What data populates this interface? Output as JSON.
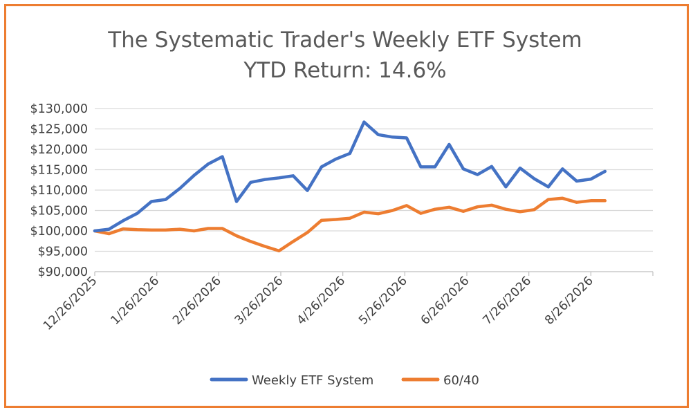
{
  "chart_data": {
    "type": "line",
    "title": "The Systematic Trader's Weekly ETF System",
    "subtitle": "YTD Return: 14.6%",
    "y_ticks": [
      "$90,000",
      "$95,000",
      "$100,000",
      "$105,000",
      "$110,000",
      "$115,000",
      "$120,000",
      "$125,000",
      "$130,000"
    ],
    "ylim": [
      90000,
      130000
    ],
    "x_ticks": [
      "12/26/2025",
      "1/26/2026",
      "2/26/2026",
      "3/26/2026",
      "4/26/2026",
      "5/26/2026",
      "6/26/2026",
      "7/26/2026",
      "8/26/2026"
    ],
    "grid": true,
    "legend_position": "bottom",
    "series": [
      {
        "name": "Weekly ETF System",
        "color": "#4472C4",
        "values": [
          100000,
          100400,
          102500,
          104300,
          107200,
          107700,
          110400,
          113600,
          116400,
          118200,
          107200,
          111900,
          112600,
          113000,
          113500,
          109900,
          115700,
          117600,
          119000,
          126700,
          123600,
          123000,
          122800,
          115700,
          115700,
          121200,
          115200,
          113800,
          115800,
          110800,
          115400,
          112800,
          110800,
          115200,
          112200,
          112700,
          114600
        ]
      },
      {
        "name": "60/40",
        "color": "#ED7D31",
        "values": [
          100000,
          99300,
          100500,
          100300,
          100200,
          100200,
          100400,
          100000,
          100600,
          100600,
          98800,
          97400,
          96200,
          95100,
          97400,
          99600,
          102600,
          102800,
          103100,
          104600,
          104200,
          105000,
          106200,
          104300,
          105300,
          105800,
          104800,
          105900,
          106300,
          105300,
          104700,
          105200,
          107700,
          108000,
          107000,
          107400,
          107400
        ]
      }
    ]
  }
}
